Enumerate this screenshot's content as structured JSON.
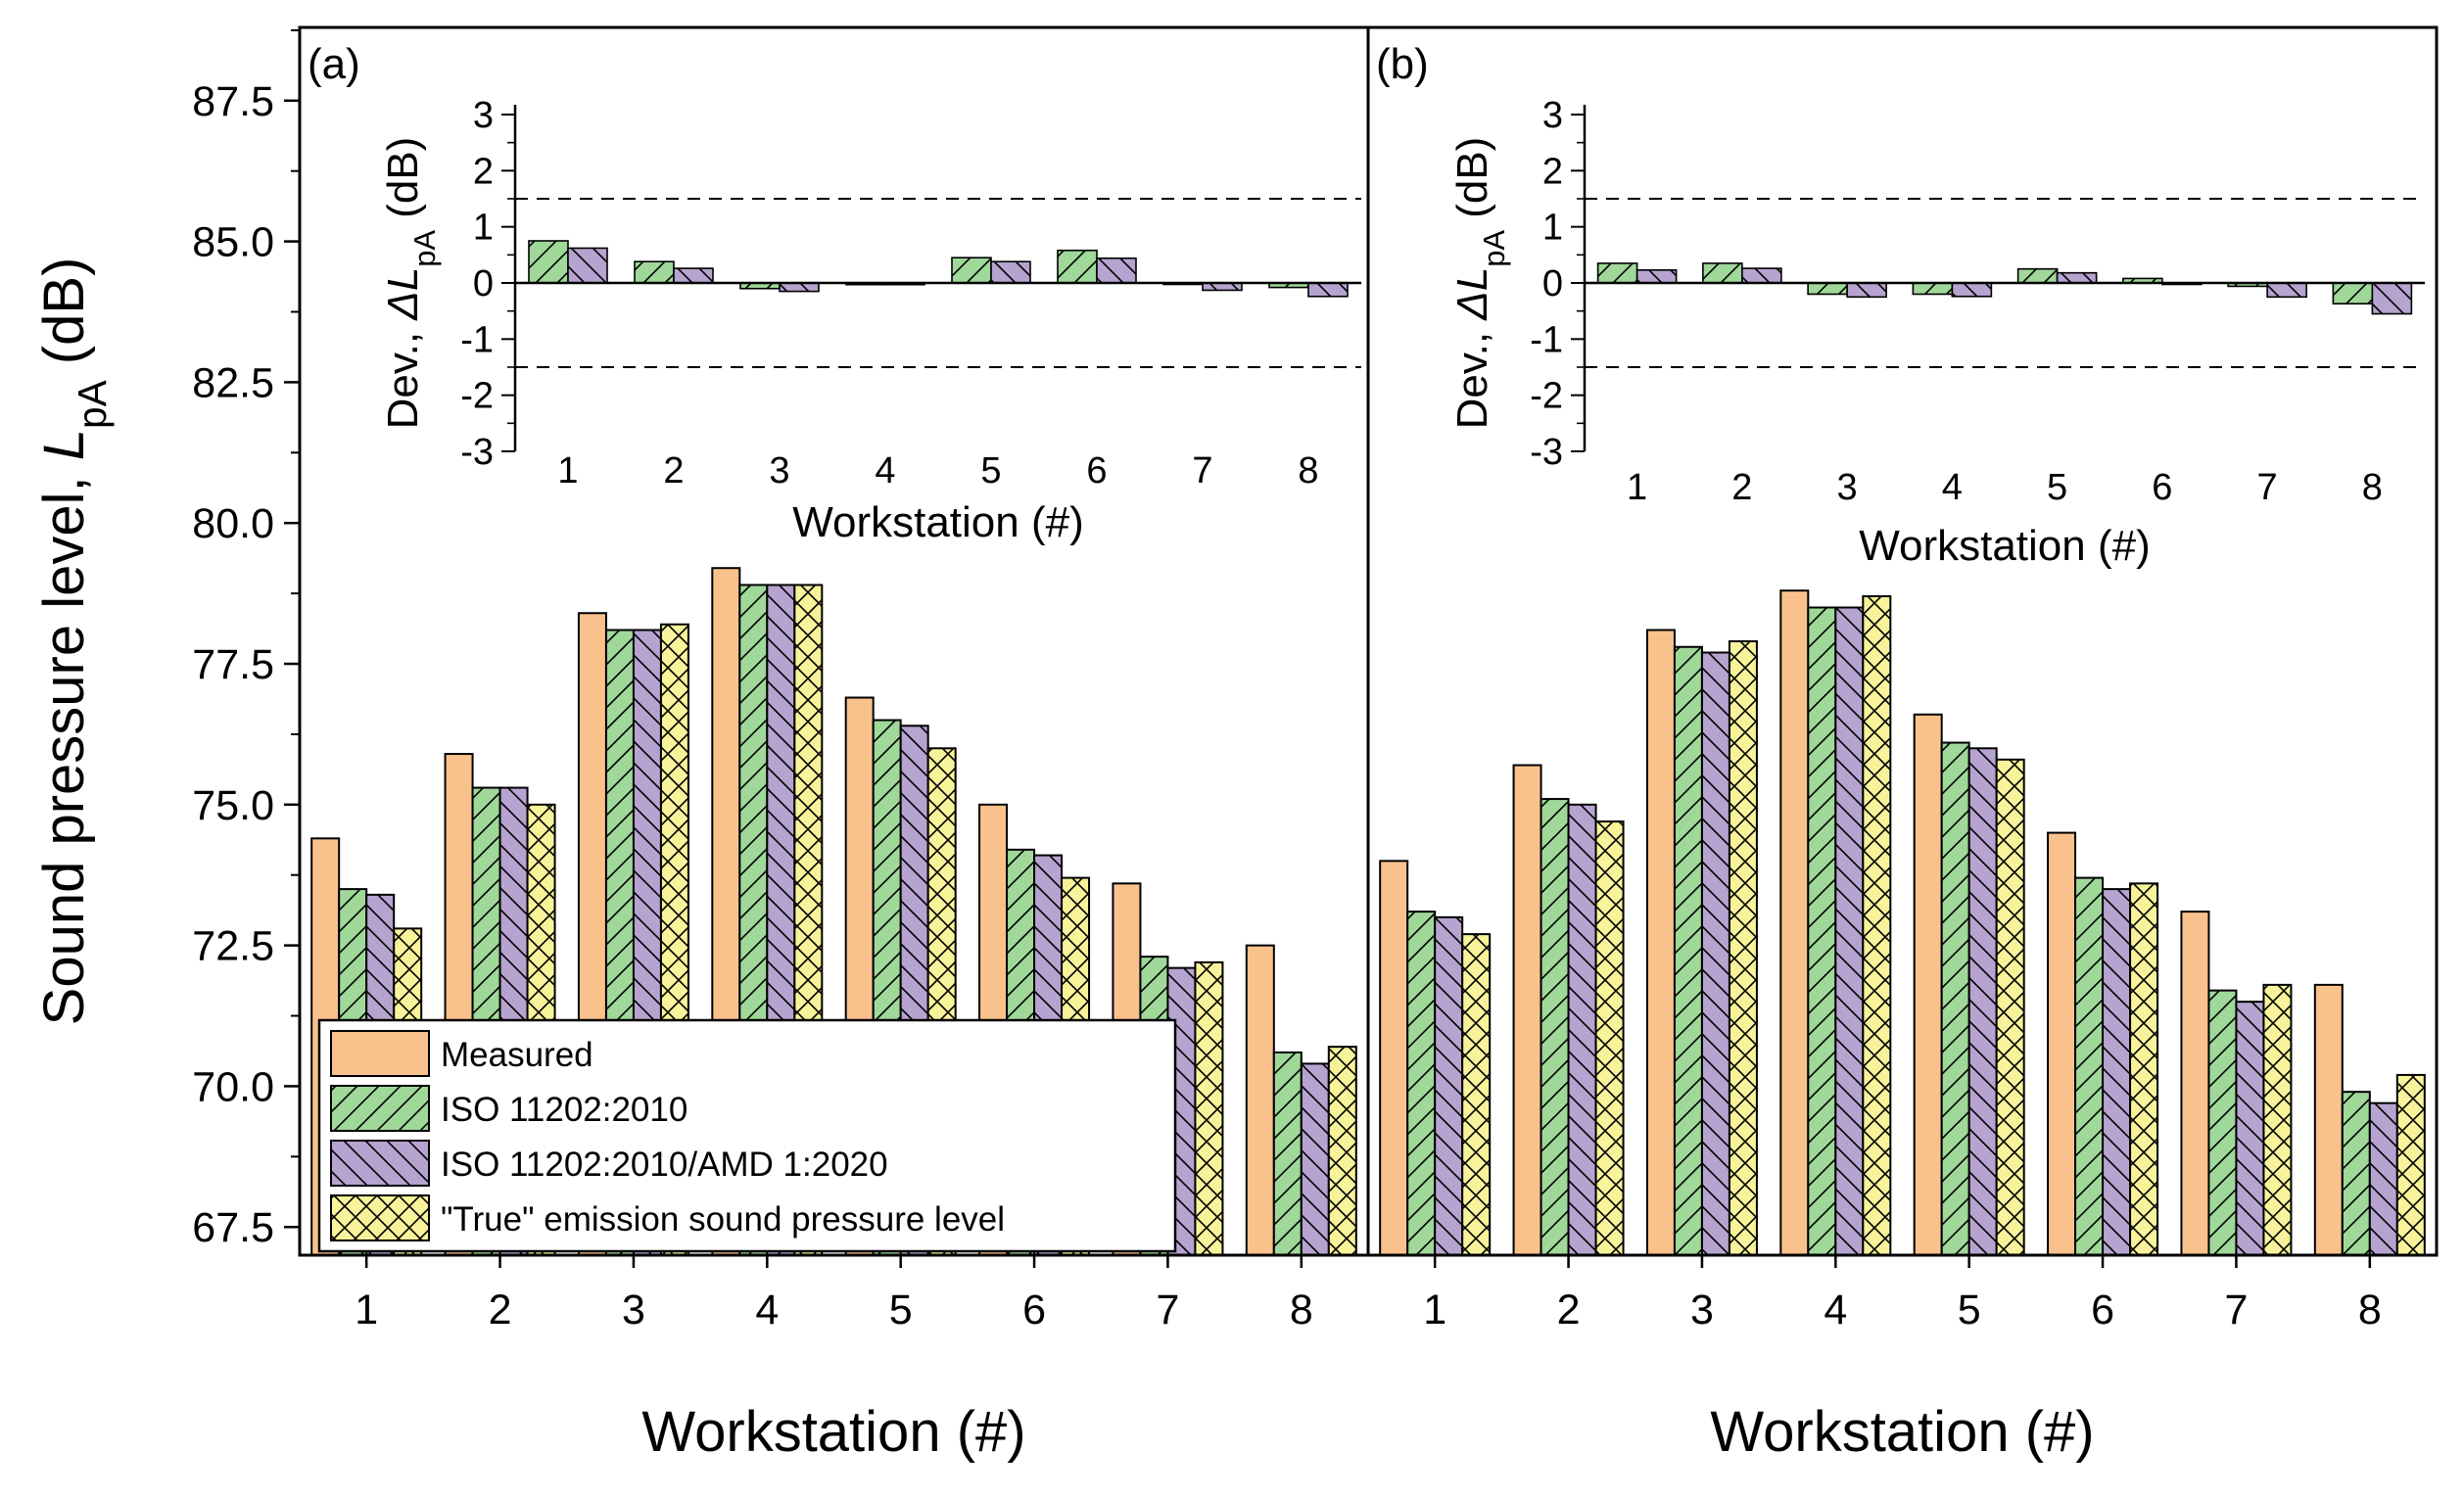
{
  "chart_data": {
    "type": "bar",
    "xlabel": "Workstation (#)",
    "ylabel_prefix": "Sound pressure level, ",
    "ylabel_var": "L",
    "ylabel_sub": "pA",
    "ylabel_unit": " (dB)",
    "ylim": [
      67.0,
      88.8
    ],
    "yticks": [
      "67.5",
      "70.0",
      "72.5",
      "75.0",
      "77.5",
      "80.0",
      "82.5",
      "85.0",
      "87.5"
    ],
    "categories": [
      "1",
      "2",
      "3",
      "4",
      "5",
      "6",
      "7",
      "8"
    ],
    "colors": {
      "measured": "#f9c28d",
      "iso2010": "#9fd899",
      "amd2020": "#b6a3cf",
      "true": "#f8f29a"
    },
    "legend": {
      "location": "bottom-left of panel (a)",
      "entries": [
        "Measured",
        "ISO 11202:2010",
        "ISO 11202:2010/AMD 1:2020",
        "\"True\" emission sound pressure level"
      ]
    },
    "panels": [
      {
        "label": "(a)",
        "series": [
          {
            "name": "Measured",
            "values": [
              74.4,
              75.9,
              78.4,
              79.2,
              76.9,
              75.0,
              73.6,
              72.5
            ]
          },
          {
            "name": "ISO 11202:2010",
            "values": [
              73.5,
              75.3,
              78.1,
              78.9,
              76.5,
              74.2,
              72.3,
              70.6
            ]
          },
          {
            "name": "ISO 11202:2010/AMD 1:2020",
            "values": [
              73.4,
              75.3,
              78.1,
              78.9,
              76.4,
              74.1,
              72.1,
              70.4
            ]
          },
          {
            "name": "\"True\" emission sound pressure level",
            "values": [
              72.8,
              75.0,
              78.2,
              78.9,
              76.0,
              73.7,
              72.2,
              70.7
            ]
          }
        ],
        "inset": {
          "xlabel": "Workstation (#)",
          "ylabel_prefix": "Dev., ",
          "ylabel_var": "ΔL",
          "ylabel_sub": "pA",
          "ylabel_unit": " (dB)",
          "ylim": [
            -3,
            3
          ],
          "yticks": [
            "-3",
            "-2",
            "-1",
            "0",
            "1",
            "2",
            "3"
          ],
          "reference_lines": [
            -1.5,
            1.5
          ],
          "series": [
            {
              "name": "ISO 11202:2010",
              "values": [
                0.75,
                0.38,
                -0.1,
                -0.03,
                0.45,
                0.58,
                0.0,
                -0.08
              ]
            },
            {
              "name": "ISO 11202:2010/AMD 1:2020",
              "values": [
                0.62,
                0.26,
                -0.15,
                -0.03,
                0.38,
                0.44,
                -0.13,
                -0.24
              ]
            }
          ]
        }
      },
      {
        "label": "(b)",
        "series": [
          {
            "name": "Measured",
            "values": [
              74.0,
              75.7,
              78.1,
              78.8,
              76.6,
              74.5,
              73.1,
              71.8
            ]
          },
          {
            "name": "ISO 11202:2010",
            "values": [
              73.1,
              75.1,
              77.8,
              78.5,
              76.1,
              73.7,
              71.7,
              69.9
            ]
          },
          {
            "name": "ISO 11202:2010/AMD 1:2020",
            "values": [
              73.0,
              75.0,
              77.7,
              78.5,
              76.0,
              73.5,
              71.5,
              69.7
            ]
          },
          {
            "name": "\"True\" emission sound pressure level",
            "values": [
              72.7,
              74.7,
              77.9,
              78.7,
              75.8,
              73.6,
              71.8,
              70.2
            ]
          }
        ],
        "inset": {
          "xlabel": "Workstation (#)",
          "ylabel_prefix": "Dev., ",
          "ylabel_var": "ΔL",
          "ylabel_sub": "pA",
          "ylabel_unit": " (dB)",
          "ylim": [
            -3,
            3
          ],
          "yticks": [
            "-3",
            "-2",
            "-1",
            "0",
            "1",
            "2",
            "3"
          ],
          "reference_lines": [
            -1.5,
            1.5
          ],
          "series": [
            {
              "name": "ISO 11202:2010",
              "values": [
                0.35,
                0.35,
                -0.2,
                -0.2,
                0.25,
                0.08,
                -0.06,
                -0.37
              ]
            },
            {
              "name": "ISO 11202:2010/AMD 1:2020",
              "values": [
                0.23,
                0.26,
                -0.25,
                -0.24,
                0.18,
                0.0,
                -0.25,
                -0.55
              ]
            }
          ]
        }
      }
    ]
  }
}
